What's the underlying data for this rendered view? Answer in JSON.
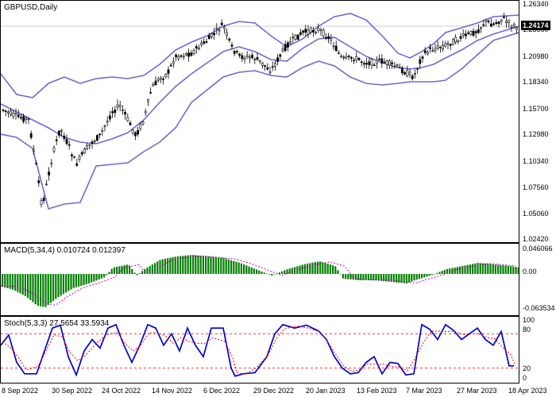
{
  "main": {
    "title": "GBPUSD,Daily",
    "last_price": "1.24174",
    "price_labels": [
      "1.26340",
      "1.23560",
      "1.20980",
      "1.18340",
      "1.15700",
      "1.12980",
      "1.10340",
      "1.07560",
      "1.05060",
      "1.02420"
    ],
    "colors": {
      "bands": "#6b6bd6",
      "candles": "#000000"
    }
  },
  "macd": {
    "title": "MACD(5,34,4) 0.010724 0.012397",
    "labels": [
      "0.046066",
      "0.00",
      "-0.063534"
    ],
    "colors": {
      "histogram": "#008000",
      "signal": "#c000c0"
    }
  },
  "stoch": {
    "title": "Stoch(5,3,3) 27.5654 33.5934",
    "labels": [
      "100",
      "80",
      "20",
      "0"
    ],
    "colors": {
      "main": "#0000cc",
      "signal": "#ff0000"
    }
  },
  "x_labels": [
    "8 Sep 2022",
    "30 Sep 2022",
    "24 Oct 2022",
    "14 Nov 2022",
    "6 Dec 2022",
    "29 Dec 2022",
    "20 Jan 2023",
    "13 Feb 2023",
    "7 Mar 2023",
    "27 Mar 2023",
    "18 Apr 2023"
  ]
}
